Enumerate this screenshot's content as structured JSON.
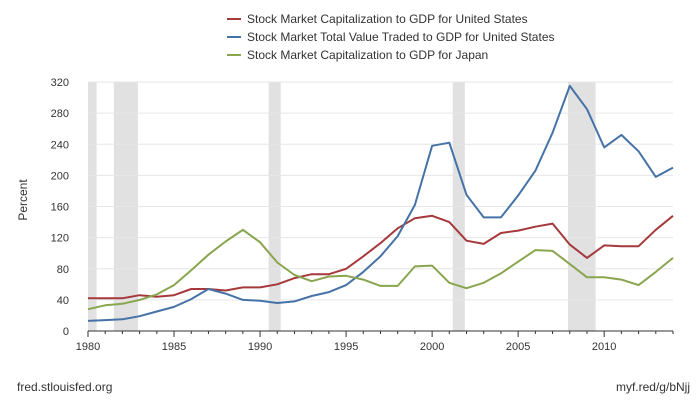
{
  "source_text": "fred.stlouisfed.org",
  "short_link": "myf.red/g/bNjj",
  "chart_data": {
    "type": "line",
    "title": "",
    "xlabel": "",
    "ylabel": "Percent",
    "xlim": [
      1980,
      2014
    ],
    "ylim": [
      0,
      320
    ],
    "x_ticks": [
      1980,
      1985,
      1990,
      1995,
      2000,
      2005,
      2010
    ],
    "y_ticks": [
      0,
      40,
      80,
      120,
      160,
      200,
      240,
      280,
      320
    ],
    "grid": true,
    "legend_position": "top-center",
    "recessions": [
      [
        1980.0,
        1980.5
      ],
      [
        1981.5,
        1982.9
      ],
      [
        1990.5,
        1991.2
      ],
      [
        2001.2,
        2001.9
      ],
      [
        2007.9,
        2009.5
      ]
    ],
    "recession_color": "#e1e1e1",
    "series": [
      {
        "name": "Stock Market Capitalization to GDP for United States",
        "color": "#a6393b",
        "x": [
          1980,
          1981,
          1982,
          1983,
          1984,
          1985,
          1986,
          1987,
          1988,
          1989,
          1990,
          1991,
          1992,
          1993,
          1994,
          1995,
          1996,
          1997,
          1998,
          1999,
          2000,
          2001,
          2002,
          2003,
          2004,
          2005,
          2006,
          2007,
          2008,
          2009,
          2010,
          2011,
          2012,
          2013,
          2014
        ],
        "values": [
          42,
          42,
          42,
          46,
          44,
          46,
          54,
          54,
          52,
          56,
          56,
          60,
          68,
          73,
          73,
          80,
          96,
          113,
          132,
          145,
          148,
          140,
          116,
          112,
          126,
          129,
          134,
          138,
          111,
          94,
          110,
          109,
          109,
          130,
          148
        ]
      },
      {
        "name": "Stock Market Total Value Traded to GDP for United States",
        "color": "#4572a7",
        "x": [
          1980,
          1981,
          1982,
          1983,
          1984,
          1985,
          1986,
          1987,
          1988,
          1989,
          1990,
          1991,
          1992,
          1993,
          1994,
          1995,
          1996,
          1997,
          1998,
          1999,
          2000,
          2001,
          2002,
          2003,
          2004,
          2005,
          2006,
          2007,
          2008,
          2009,
          2010,
          2011,
          2012,
          2013,
          2014
        ],
        "values": [
          13,
          14,
          15,
          19,
          25,
          31,
          41,
          54,
          48,
          40,
          39,
          36,
          38,
          45,
          50,
          59,
          76,
          96,
          122,
          162,
          238,
          242,
          175,
          146,
          146,
          174,
          206,
          255,
          315,
          285,
          236,
          252,
          231,
          198,
          210
        ]
      },
      {
        "name": "Stock Market Capitalization to GDP for Japan",
        "color": "#89a54e",
        "x": [
          1980,
          1981,
          1982,
          1983,
          1984,
          1985,
          1986,
          1987,
          1988,
          1989,
          1990,
          1991,
          1992,
          1993,
          1994,
          1995,
          1996,
          1997,
          1998,
          1999,
          2000,
          2001,
          2002,
          2003,
          2004,
          2005,
          2006,
          2007,
          2008,
          2009,
          2010,
          2011,
          2012,
          2013,
          2014
        ],
        "values": [
          28,
          33,
          35,
          40,
          47,
          59,
          78,
          98,
          115,
          130,
          114,
          88,
          72,
          64,
          70,
          71,
          66,
          58,
          58,
          83,
          84,
          62,
          55,
          62,
          74,
          89,
          104,
          103,
          86,
          69,
          69,
          66,
          59,
          76,
          94
        ]
      }
    ]
  }
}
